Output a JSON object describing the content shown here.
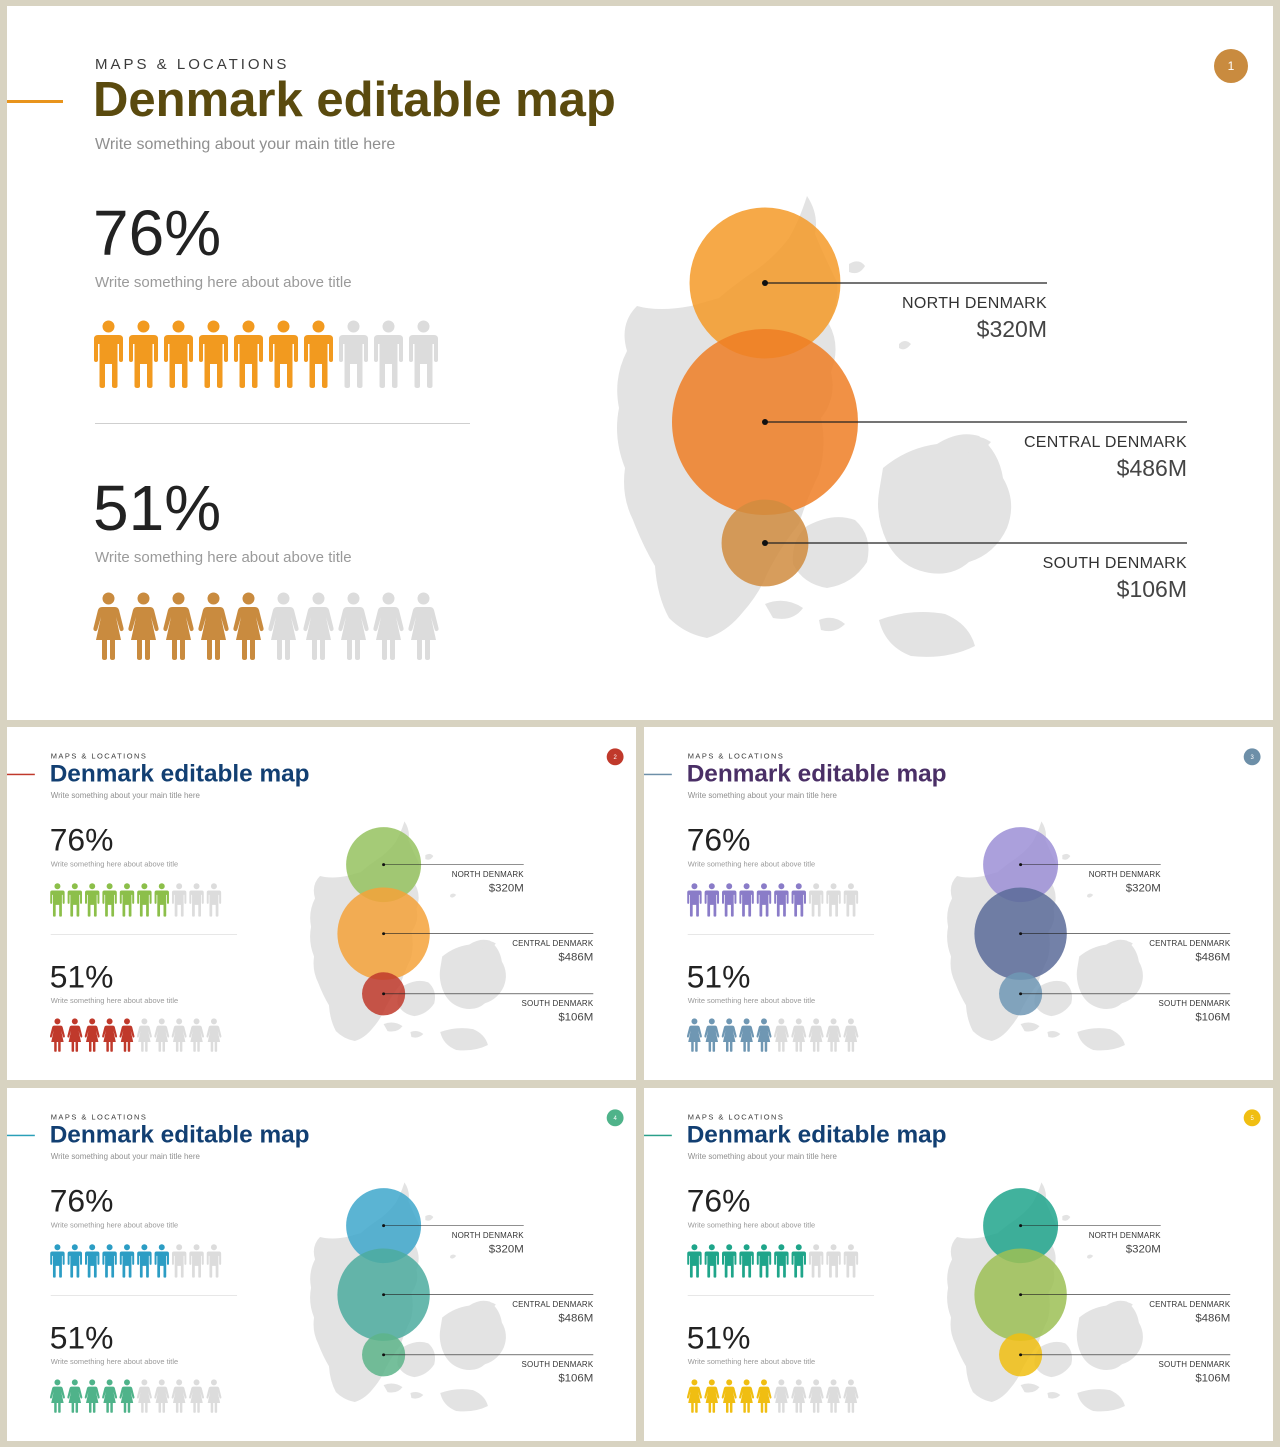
{
  "slides": [
    {
      "kicker": "MAPS & LOCATIONS",
      "title": "Denmark editable map",
      "subtitle": "Write something about your main title here",
      "badge": "1",
      "colors": {
        "title": "#5a4a0e",
        "rule": "#e8941c",
        "badge": "#c98b3f",
        "male": "#f29a1f",
        "female": "#c98b3f",
        "north": "#f59a28",
        "central": "#ef7e25",
        "south": "#d08c3f"
      }
    },
    {
      "kicker": "MAPS & LOCATIONS",
      "title": "Denmark editable map",
      "subtitle": "Write something about your main title here",
      "badge": "2",
      "colors": {
        "title": "#123f72",
        "rule": "#c0392b",
        "badge": "#c0392b",
        "male": "#8cbf4a",
        "female": "#c0392b",
        "north": "#95c25f",
        "central": "#f5a23a",
        "south": "#c0392b"
      }
    },
    {
      "kicker": "MAPS & LOCATIONS",
      "title": "Denmark editable map",
      "subtitle": "Write something about your main title here",
      "badge": "3",
      "colors": {
        "title": "#4a2f66",
        "rule": "#6d8fa8",
        "badge": "#6d8fa8",
        "male": "#8a7cc8",
        "female": "#6f97b3",
        "north": "#9c8fd6",
        "central": "#5a6b99",
        "south": "#7098b5"
      }
    },
    {
      "kicker": "MAPS & LOCATIONS",
      "title": "Denmark editable map",
      "subtitle": "Write something about your main title here",
      "badge": "4",
      "colors": {
        "title": "#123f72",
        "rule": "#2aa0b8",
        "badge": "#4fb38a",
        "male": "#2c9dc4",
        "female": "#4fb38a",
        "north": "#3ea7cb",
        "central": "#4cab9f",
        "south": "#5db48a"
      }
    },
    {
      "kicker": "MAPS & LOCATIONS",
      "title": "Denmark editable map",
      "subtitle": "Write something about your main title here",
      "badge": "5",
      "colors": {
        "title": "#123f72",
        "rule": "#2aa08a",
        "badge": "#f0be12",
        "male": "#1fa58a",
        "female": "#f0be12",
        "north": "#20a58c",
        "central": "#9cbf55",
        "south": "#f0be12"
      }
    }
  ],
  "stats": [
    {
      "value": "76%",
      "desc": "Write something here about above title",
      "filled": 7,
      "total": 10,
      "icon": "male-person-icon"
    },
    {
      "value": "51%",
      "desc": "Write something here about above title",
      "filled": 5,
      "total": 10,
      "icon": "female-person-icon"
    }
  ],
  "regions": [
    {
      "name": "NORTH DENMARK",
      "value": "$320M",
      "amount": 320
    },
    {
      "name": "CENTRAL DENMARK",
      "value": "$486M",
      "amount": 486
    },
    {
      "name": "SOUTH DENMARK",
      "value": "$106M",
      "amount": 106
    }
  ]
}
